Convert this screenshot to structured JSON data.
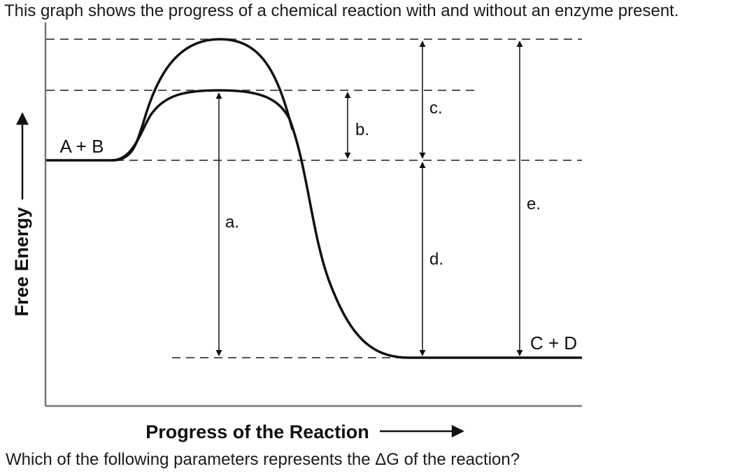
{
  "intro_text": "This graph shows the progress of a chemical reaction with and without an enzyme present.",
  "question_text": "Which of the following parameters represents the ΔG of the reaction?",
  "diagram": {
    "y_axis_label": "Free Energy",
    "x_axis_label": "Progress of the Reaction",
    "reactants_label": "A + B",
    "products_label": "C + D",
    "label_a": "a.",
    "label_b": "b.",
    "label_c": "c.",
    "label_d": "d.",
    "label_e": "e."
  }
}
